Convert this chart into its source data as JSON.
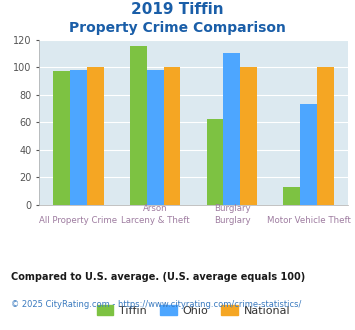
{
  "title_line1": "2019 Tiffin",
  "title_line2": "Property Crime Comparison",
  "bottom_labels": [
    "All Property Crime",
    "Larceny & Theft",
    "Burglary",
    "Motor Vehicle Theft"
  ],
  "top_labels": [
    "",
    "Arson",
    "Burglary",
    ""
  ],
  "tiffin": [
    97,
    115,
    62,
    13
  ],
  "ohio": [
    98,
    98,
    110,
    73
  ],
  "national": [
    100,
    100,
    100,
    100
  ],
  "tiffin_color": "#7dc242",
  "ohio_color": "#4da6ff",
  "national_color": "#f5a623",
  "bg_color": "#dce9f0",
  "ylim": [
    0,
    120
  ],
  "yticks": [
    0,
    20,
    40,
    60,
    80,
    100,
    120
  ],
  "bar_width": 0.22,
  "legend_labels": [
    "Tiffin",
    "Ohio",
    "National"
  ],
  "footnote1": "Compared to U.S. average. (U.S. average equals 100)",
  "footnote2": "© 2025 CityRating.com - https://www.cityrating.com/crime-statistics/",
  "title_color": "#1a5ea8",
  "xlabel_bottom_color": "#9e7ca0",
  "xlabel_top_color": "#9e7ca0",
  "footnote1_color": "#1a1a1a",
  "footnote2_color": "#3a7abf"
}
